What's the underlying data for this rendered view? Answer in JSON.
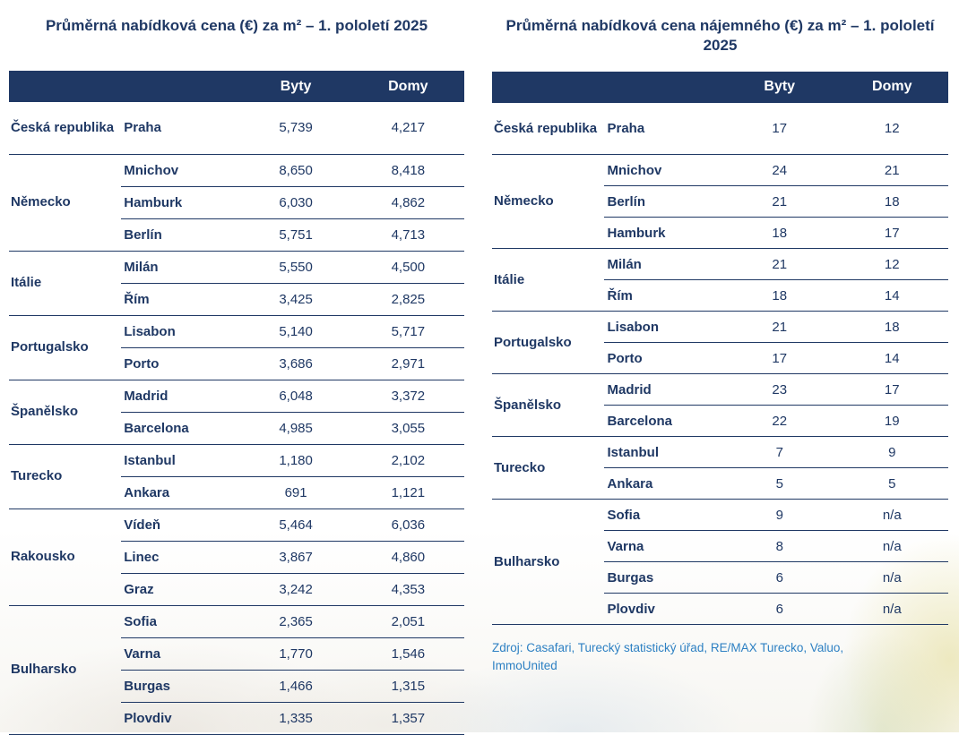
{
  "colors": {
    "navy": "#1f3864",
    "header_text": "#ffffff",
    "source_blue": "#2d80c3"
  },
  "offer_table": {
    "title": "Průměrná nabídková cena (€) za m² – 1. pololetí 2025",
    "columns": {
      "byty": "Byty",
      "domy": "Domy"
    },
    "groups": [
      {
        "country": "Česká republika",
        "rows": [
          {
            "city": "Praha",
            "byty": "5,739",
            "domy": "4,217"
          }
        ]
      },
      {
        "country": "Německo",
        "rows": [
          {
            "city": "Mnichov",
            "byty": "8,650",
            "domy": "8,418"
          },
          {
            "city": "Hamburk",
            "byty": "6,030",
            "domy": "4,862"
          },
          {
            "city": "Berlín",
            "byty": "5,751",
            "domy": "4,713"
          }
        ]
      },
      {
        "country": "Itálie",
        "rows": [
          {
            "city": "Milán",
            "byty": "5,550",
            "domy": "4,500"
          },
          {
            "city": "Řím",
            "byty": "3,425",
            "domy": "2,825"
          }
        ]
      },
      {
        "country": "Portugalsko",
        "rows": [
          {
            "city": "Lisabon",
            "byty": "5,140",
            "domy": "5,717"
          },
          {
            "city": "Porto",
            "byty": "3,686",
            "domy": "2,971"
          }
        ]
      },
      {
        "country": "Španělsko",
        "rows": [
          {
            "city": "Madrid",
            "byty": "6,048",
            "domy": "3,372"
          },
          {
            "city": "Barcelona",
            "byty": "4,985",
            "domy": "3,055"
          }
        ]
      },
      {
        "country": "Turecko",
        "rows": [
          {
            "city": "Istanbul",
            "byty": "1,180",
            "domy": "2,102"
          },
          {
            "city": "Ankara",
            "byty": "691",
            "domy": "1,121"
          }
        ]
      },
      {
        "country": "Rakousko",
        "rows": [
          {
            "city": "Vídeň",
            "byty": "5,464",
            "domy": "6,036"
          },
          {
            "city": "Linec",
            "byty": "3,867",
            "domy": "4,860"
          },
          {
            "city": "Graz",
            "byty": "3,242",
            "domy": "4,353"
          }
        ]
      },
      {
        "country": "Bulharsko",
        "rows": [
          {
            "city": "Sofia",
            "byty": "2,365",
            "domy": "2,051"
          },
          {
            "city": "Varna",
            "byty": "1,770",
            "domy": "1,546"
          },
          {
            "city": "Burgas",
            "byty": "1,466",
            "domy": "1,315"
          },
          {
            "city": "Plovdiv",
            "byty": "1,335",
            "domy": "1,357"
          }
        ]
      }
    ]
  },
  "rent_table": {
    "title": "Průměrná nabídková cena nájemného (€) za m² – 1. pololetí 2025",
    "columns": {
      "byty": "Byty",
      "domy": "Domy"
    },
    "groups": [
      {
        "country": "Česká republika",
        "rows": [
          {
            "city": "Praha",
            "byty": "17",
            "domy": "12"
          }
        ]
      },
      {
        "country": "Německo",
        "rows": [
          {
            "city": "Mnichov",
            "byty": "24",
            "domy": "21"
          },
          {
            "city": "Berlín",
            "byty": "21",
            "domy": "18"
          },
          {
            "city": "Hamburk",
            "byty": "18",
            "domy": "17"
          }
        ]
      },
      {
        "country": "Itálie",
        "rows": [
          {
            "city": "Milán",
            "byty": "21",
            "domy": "12"
          },
          {
            "city": "Řím",
            "byty": "18",
            "domy": "14"
          }
        ]
      },
      {
        "country": "Portugalsko",
        "rows": [
          {
            "city": "Lisabon",
            "byty": "21",
            "domy": "18"
          },
          {
            "city": "Porto",
            "byty": "17",
            "domy": "14"
          }
        ]
      },
      {
        "country": "Španělsko",
        "rows": [
          {
            "city": "Madrid",
            "byty": "23",
            "domy": "17"
          },
          {
            "city": "Barcelona",
            "byty": "22",
            "domy": "19"
          }
        ]
      },
      {
        "country": "Turecko",
        "rows": [
          {
            "city": "Istanbul",
            "byty": "7",
            "domy": "9"
          },
          {
            "city": "Ankara",
            "byty": "5",
            "domy": "5"
          }
        ]
      },
      {
        "country": "Bulharsko",
        "rows": [
          {
            "city": "Sofia",
            "byty": "9",
            "domy": "n/a"
          },
          {
            "city": "Varna",
            "byty": "8",
            "domy": "n/a"
          },
          {
            "city": "Burgas",
            "byty": "6",
            "domy": "n/a"
          },
          {
            "city": "Plovdiv",
            "byty": "6",
            "domy": "n/a"
          }
        ]
      }
    ]
  },
  "source": {
    "text": "Zdroj: Casafari, Turecký statistický úřad, RE/MAX Turecko, Valuo, ImmoUnited"
  }
}
